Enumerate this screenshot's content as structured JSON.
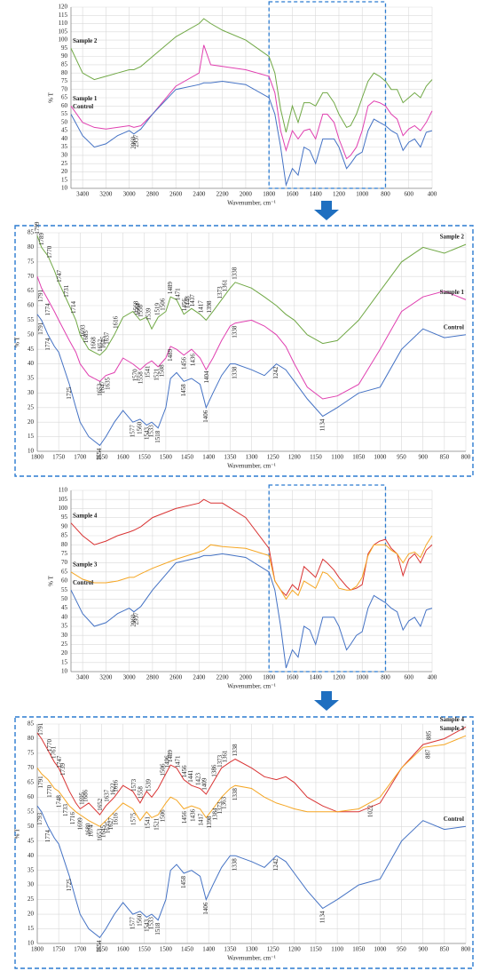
{
  "chart_data": [
    {
      "type": "line",
      "x_label": "Wavenumber, cm⁻¹",
      "y_label": "% T",
      "xlim": [
        3500,
        400
      ],
      "xticks": [
        3400,
        3200,
        3000,
        2800,
        2600,
        2400,
        2200,
        2000,
        1800,
        1600,
        1400,
        1200,
        1000,
        800,
        600,
        400
      ],
      "ylim": [
        10,
        120
      ],
      "yticks": [
        10,
        15,
        20,
        25,
        30,
        35,
        40,
        45,
        50,
        55,
        60,
        65,
        70,
        75,
        80,
        85,
        90,
        95,
        100,
        105,
        110,
        115,
        120
      ],
      "grid": true,
      "highlight_range": [
        1800,
        800
      ],
      "series_label_side": "left",
      "x": [
        3500,
        3400,
        3300,
        3200,
        3100,
        3000,
        2960,
        2900,
        2800,
        2600,
        2400,
        2360,
        2300,
        2200,
        2000,
        1800,
        1750,
        1700,
        1654,
        1600,
        1550,
        1500,
        1450,
        1400,
        1338,
        1300,
        1242,
        1200,
        1134,
        1100,
        1050,
        1000,
        950,
        900,
        850,
        800,
        750,
        700,
        650,
        600,
        550,
        500,
        450,
        400
      ],
      "series": [
        {
          "name": "Sample 2",
          "color": "#70a845",
          "values": [
            95,
            80,
            76,
            78,
            80,
            82,
            82,
            84,
            90,
            102,
            110,
            113,
            110,
            106,
            100,
            90,
            80,
            58,
            44,
            60,
            50,
            62,
            62,
            60,
            68,
            68,
            62,
            55,
            47,
            48,
            55,
            65,
            75,
            80,
            78,
            75,
            70,
            70,
            62,
            65,
            68,
            65,
            72,
            76
          ]
        },
        {
          "name": "Sample 1",
          "color": "#e040b0",
          "values": [
            60,
            50,
            47,
            46,
            47,
            48,
            47,
            48,
            55,
            72,
            80,
            97,
            85,
            84,
            82,
            78,
            68,
            45,
            33,
            45,
            40,
            45,
            46,
            40,
            55,
            55,
            50,
            40,
            28,
            30,
            35,
            45,
            60,
            63,
            62,
            60,
            55,
            52,
            42,
            46,
            48,
            45,
            50,
            57
          ]
        },
        {
          "name": "Control",
          "color": "#4472c4",
          "values": [
            55,
            42,
            35,
            37,
            42,
            45,
            43,
            46,
            55,
            70,
            73,
            74,
            74,
            75,
            73,
            65,
            55,
            35,
            12,
            22,
            18,
            35,
            33,
            25,
            40,
            40,
            40,
            35,
            22,
            25,
            30,
            32,
            45,
            52,
            50,
            48,
            45,
            43,
            33,
            38,
            40,
            35,
            44,
            45
          ],
          "peaks": [
            2960,
            2937
          ]
        }
      ]
    },
    {
      "type": "line",
      "x_label": "Wavenumber, cm⁻¹",
      "y_label": "% T",
      "xlim": [
        1800,
        800
      ],
      "xticks": [
        1800,
        1750,
        1700,
        1650,
        1600,
        1550,
        1500,
        1450,
        1400,
        1350,
        1300,
        1250,
        1200,
        1150,
        1100,
        1050,
        1000,
        950,
        900,
        850,
        800
      ],
      "ylim": [
        10,
        85
      ],
      "yticks": [
        10,
        15,
        20,
        25,
        30,
        35,
        40,
        45,
        50,
        55,
        60,
        65,
        70,
        75,
        80,
        85
      ],
      "grid": true,
      "series_label_side": "right",
      "x": [
        1800,
        1790,
        1775,
        1760,
        1750,
        1725,
        1710,
        1700,
        1680,
        1654,
        1640,
        1620,
        1600,
        1577,
        1560,
        1545,
        1533,
        1518,
        1500,
        1489,
        1475,
        1458,
        1440,
        1420,
        1406,
        1390,
        1370,
        1350,
        1338,
        1300,
        1270,
        1242,
        1220,
        1200,
        1170,
        1134,
        1100,
        1050,
        1000,
        950,
        900,
        850,
        800
      ],
      "series": [
        {
          "name": "Sample 2",
          "color": "#70a845",
          "values": [
            84,
            80,
            77,
            72,
            68,
            60,
            55,
            50,
            45,
            43,
            45,
            50,
            56,
            58,
            55,
            56,
            52,
            56,
            58,
            63,
            62,
            57,
            59,
            57,
            55,
            58,
            62,
            66,
            68,
            66,
            63,
            60,
            57,
            55,
            50,
            47,
            48,
            55,
            65,
            75,
            80,
            78,
            81
          ],
          "peaks": [
            1799,
            1789,
            1770,
            1747,
            1731,
            1714,
            1693,
            1685,
            1668,
            1652,
            1645,
            1637,
            1616,
            1568,
            1564,
            1558,
            1539,
            1519,
            1506,
            1489,
            1471,
            1456,
            1448,
            1437,
            1417,
            1398,
            1373,
            1361,
            1338
          ]
        },
        {
          "name": "Sample 1",
          "color": "#e040b0",
          "values": [
            70,
            66,
            62,
            58,
            55,
            48,
            44,
            40,
            36,
            34,
            36,
            37,
            42,
            40,
            38,
            40,
            41,
            39,
            42,
            46,
            45,
            43,
            45,
            42,
            38,
            42,
            48,
            53,
            54,
            55,
            53,
            50,
            46,
            40,
            32,
            28,
            29,
            33,
            45,
            58,
            63,
            65,
            62
          ],
          "peaks": [
            1791,
            1774,
            1653,
            1647,
            1635,
            1570,
            1558,
            1541,
            1521,
            1508,
            1489,
            1456,
            1436,
            1404,
            1338
          ]
        },
        {
          "name": "Control",
          "color": "#4472c4",
          "values": [
            57,
            55,
            50,
            46,
            44,
            33,
            25,
            20,
            15,
            12,
            15,
            20,
            24,
            20,
            21,
            19,
            20,
            18,
            25,
            35,
            37,
            34,
            35,
            33,
            25,
            30,
            36,
            40,
            40,
            38,
            36,
            40,
            38,
            34,
            28,
            22,
            25,
            30,
            32,
            45,
            52,
            49,
            50
          ],
          "peaks": [
            1791,
            1774,
            1725,
            1654,
            1577,
            1560,
            1543,
            1533,
            1518,
            1458,
            1406,
            1338,
            1242,
            1134
          ]
        }
      ]
    },
    {
      "type": "line",
      "x_label": "Wavenumber, cm⁻¹",
      "y_label": "% T",
      "xlim": [
        3500,
        400
      ],
      "xticks": [
        3400,
        3200,
        3000,
        2800,
        2600,
        2400,
        2200,
        2000,
        1800,
        1600,
        1400,
        1200,
        1000,
        800,
        600,
        400
      ],
      "ylim": [
        10,
        110
      ],
      "yticks": [
        10,
        15,
        20,
        25,
        30,
        35,
        40,
        45,
        50,
        55,
        60,
        65,
        70,
        75,
        80,
        85,
        90,
        95,
        100,
        105,
        110
      ],
      "grid": true,
      "highlight_range": [
        1800,
        800
      ],
      "series_label_side": "left",
      "x": [
        3500,
        3400,
        3300,
        3200,
        3100,
        3000,
        2960,
        2900,
        2800,
        2600,
        2400,
        2360,
        2300,
        2200,
        2000,
        1800,
        1750,
        1700,
        1654,
        1600,
        1550,
        1500,
        1450,
        1400,
        1338,
        1300,
        1242,
        1200,
        1134,
        1100,
        1050,
        1000,
        950,
        900,
        850,
        800,
        750,
        700,
        650,
        600,
        550,
        500,
        450,
        400
      ],
      "series": [
        {
          "name": "Sample 4",
          "color": "#d93434",
          "values": [
            92,
            85,
            80,
            82,
            85,
            87,
            88,
            90,
            95,
            100,
            103,
            105,
            103,
            103,
            95,
            78,
            60,
            55,
            52,
            58,
            55,
            68,
            65,
            62,
            72,
            70,
            66,
            62,
            57,
            55,
            56,
            58,
            75,
            80,
            82,
            83,
            78,
            75,
            63,
            72,
            75,
            70,
            77,
            80
          ]
        },
        {
          "name": "Sample 3",
          "color": "#f5a623",
          "values": [
            65,
            61,
            59,
            59,
            60,
            62,
            62,
            64,
            67,
            72,
            76,
            77,
            80,
            79,
            78,
            74,
            60,
            55,
            50,
            55,
            52,
            60,
            58,
            56,
            65,
            64,
            60,
            56,
            55,
            55,
            57,
            62,
            74,
            80,
            80,
            80,
            77,
            75,
            70,
            75,
            76,
            73,
            80,
            85
          ]
        },
        {
          "name": "Control",
          "color": "#4472c4",
          "values": [
            55,
            42,
            35,
            37,
            42,
            45,
            43,
            46,
            55,
            70,
            73,
            74,
            74,
            75,
            73,
            65,
            55,
            35,
            12,
            22,
            18,
            35,
            33,
            25,
            40,
            40,
            40,
            35,
            22,
            25,
            30,
            32,
            45,
            52,
            50,
            48,
            45,
            43,
            33,
            38,
            40,
            35,
            44,
            45
          ],
          "peaks": [
            2960,
            2937
          ]
        }
      ]
    },
    {
      "type": "line",
      "x_label": "Wavenumber, cm⁻¹",
      "y_label": "% T",
      "xlim": [
        1800,
        800
      ],
      "xticks": [
        1800,
        1750,
        1700,
        1650,
        1600,
        1550,
        1500,
        1450,
        1400,
        1350,
        1300,
        1250,
        1200,
        1150,
        1100,
        1050,
        1000,
        950,
        900,
        850,
        800
      ],
      "ylim": [
        10,
        85
      ],
      "yticks": [
        10,
        15,
        20,
        25,
        30,
        35,
        40,
        45,
        50,
        55,
        60,
        65,
        70,
        75,
        80,
        85
      ],
      "grid": true,
      "series_label_side": "right",
      "x": [
        1800,
        1790,
        1775,
        1760,
        1750,
        1725,
        1710,
        1700,
        1680,
        1654,
        1640,
        1620,
        1600,
        1577,
        1560,
        1545,
        1533,
        1518,
        1500,
        1489,
        1475,
        1458,
        1440,
        1420,
        1406,
        1390,
        1370,
        1350,
        1338,
        1300,
        1270,
        1242,
        1220,
        1200,
        1170,
        1134,
        1100,
        1050,
        1000,
        950,
        900,
        850,
        800
      ],
      "series": [
        {
          "name": "Sample 4",
          "color": "#d93434",
          "values": [
            82,
            80,
            76,
            72,
            70,
            62,
            58,
            56,
            58,
            54,
            57,
            60,
            64,
            62,
            58,
            62,
            60,
            63,
            68,
            71,
            70,
            66,
            64,
            63,
            61,
            65,
            70,
            72,
            73,
            70,
            67,
            66,
            67,
            65,
            60,
            57,
            55,
            55,
            58,
            70,
            78,
            80,
            84
          ],
          "peaks": [
            1791,
            1770,
            1761,
            1747,
            1739,
            1695,
            1686,
            1652,
            1637,
            1622,
            1616,
            1573,
            1558,
            1539,
            1506,
            1496,
            1489,
            1471,
            1456,
            1441,
            1423,
            1409,
            1386,
            1373,
            1361,
            1338,
            885
          ]
        },
        {
          "name": "Sample 3",
          "color": "#f5a623",
          "values": [
            70,
            68,
            66,
            63,
            62,
            57,
            55,
            54,
            52,
            50,
            52,
            55,
            58,
            56,
            52,
            55,
            53,
            54,
            58,
            60,
            59,
            56,
            57,
            56,
            53,
            56,
            60,
            63,
            64,
            63,
            60,
            58,
            57,
            56,
            55,
            55,
            55,
            56,
            60,
            70,
            77,
            78,
            81
          ],
          "peaks": [
            1791,
            1770,
            1748,
            1733,
            1716,
            1699,
            1680,
            1674,
            1653,
            1645,
            1635,
            1627,
            1616,
            1575,
            1541,
            1521,
            1506,
            1456,
            1436,
            1417,
            1398,
            1384,
            1373,
            1363,
            1338,
            1022,
            887
          ]
        },
        {
          "name": "Control",
          "color": "#4472c4",
          "values": [
            57,
            55,
            50,
            46,
            44,
            33,
            25,
            20,
            15,
            12,
            15,
            20,
            24,
            20,
            21,
            19,
            20,
            18,
            25,
            35,
            37,
            34,
            35,
            33,
            25,
            30,
            36,
            40,
            40,
            38,
            36,
            40,
            38,
            34,
            28,
            22,
            25,
            30,
            32,
            45,
            52,
            49,
            50
          ],
          "peaks": [
            1793,
            1774,
            1725,
            1654,
            1577,
            1560,
            1543,
            1533,
            1518,
            1458,
            1406,
            1338,
            1242,
            1134
          ]
        }
      ]
    }
  ]
}
